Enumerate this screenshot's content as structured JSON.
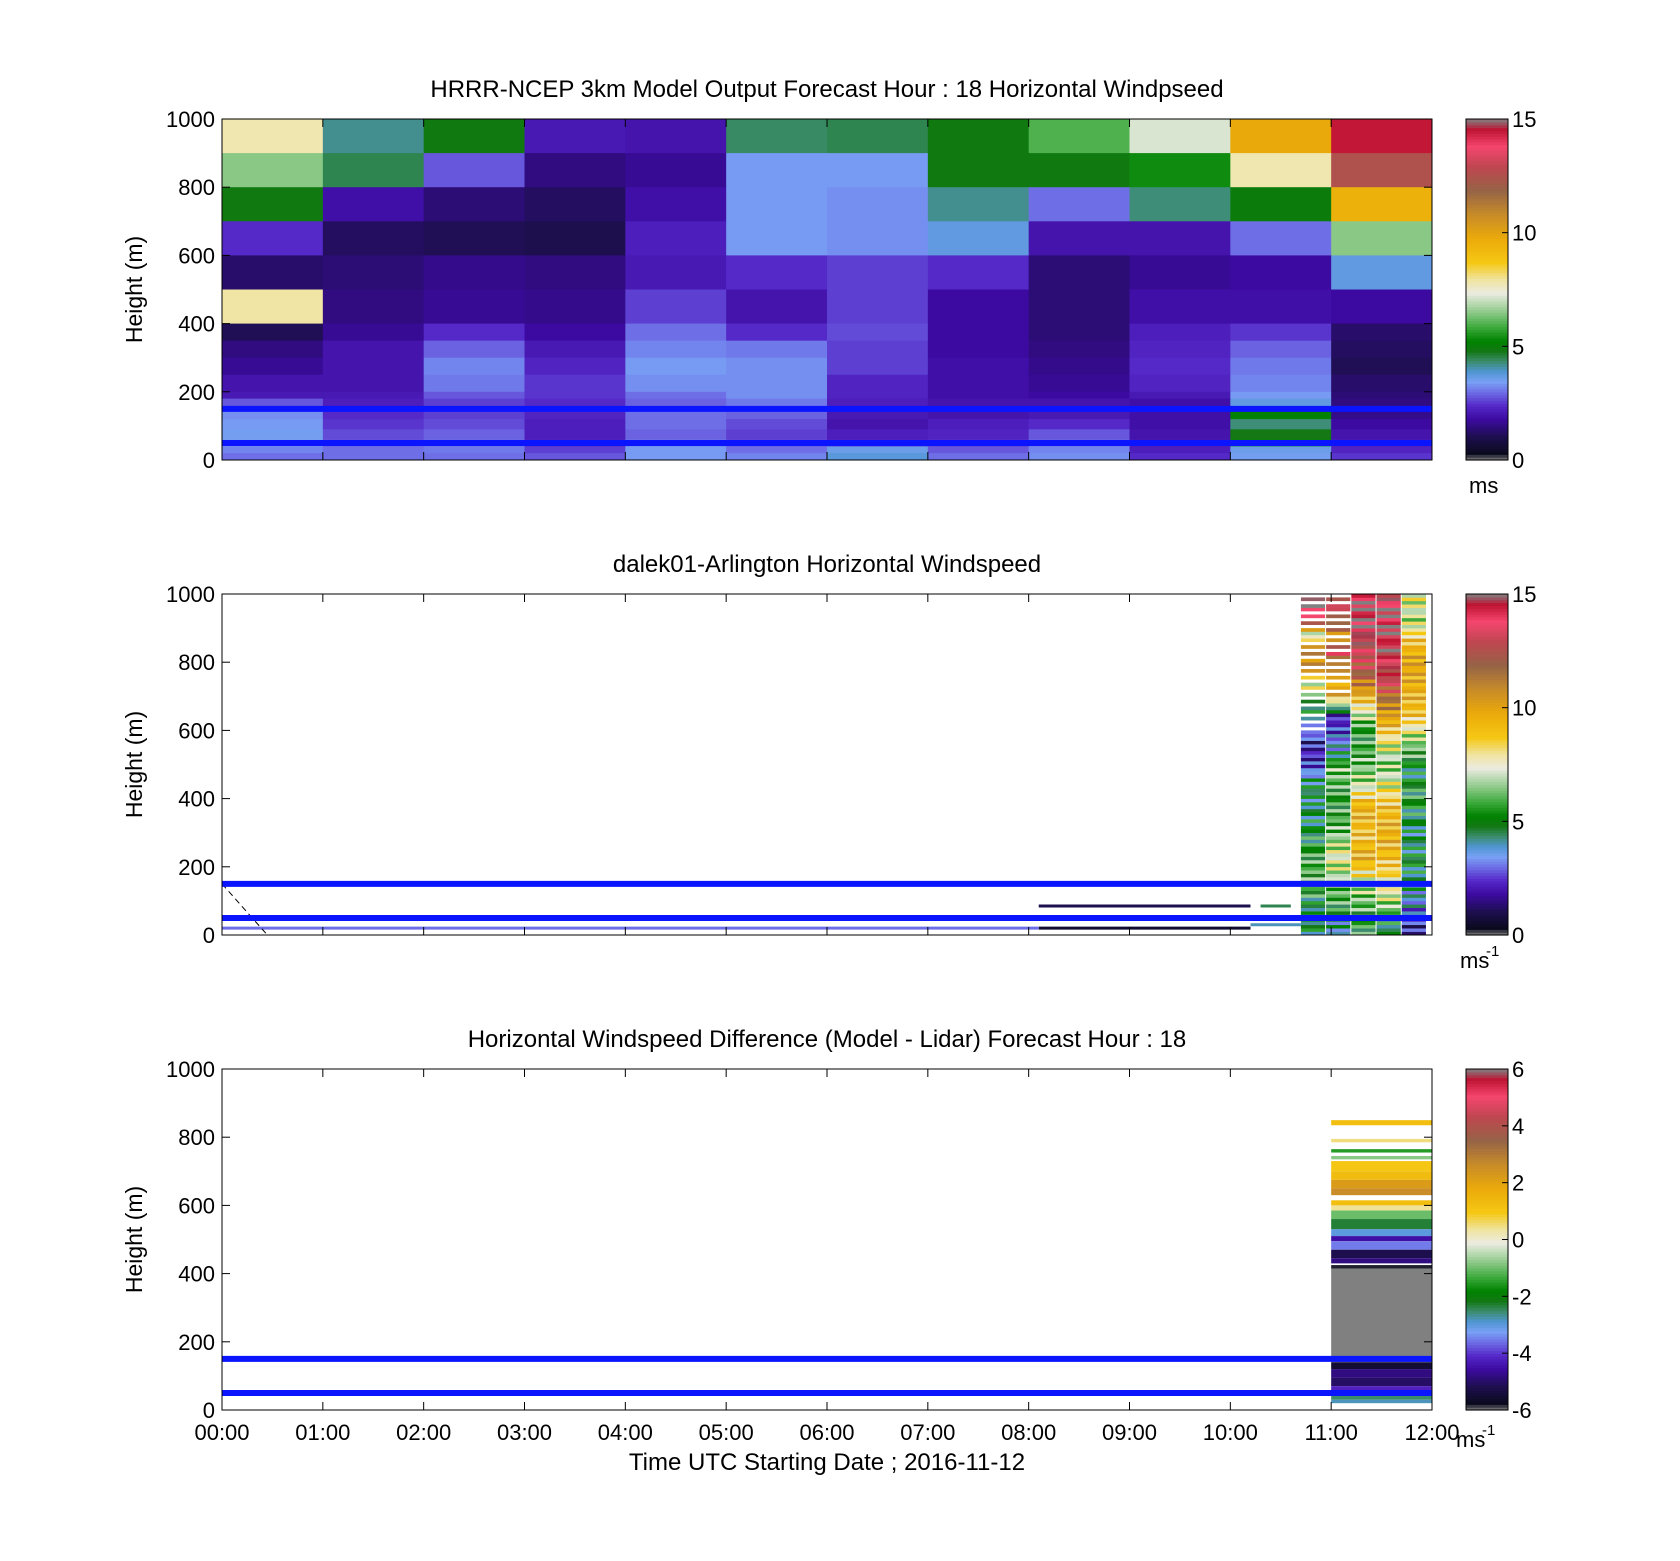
{
  "chart_data": [
    {
      "type": "heatmap",
      "title": "HRRR-NCEP 3km Model Output   Forecast Hour : 18 Horizontal Windpseed",
      "ylabel": "Height (m)",
      "xlabel": "",
      "ylim": [
        0,
        1000
      ],
      "xlim_hours": [
        0,
        12
      ],
      "yticks": [
        "0",
        "200",
        "400",
        "600",
        "800",
        "1000"
      ],
      "xticks": [
        "",
        "",
        "",
        "",
        "",
        "",
        "",
        "",
        "",
        "",
        "",
        "",
        ""
      ],
      "colorbar": {
        "min": 0,
        "max": 15,
        "ticks": [
          "0",
          "5",
          "10",
          "15"
        ],
        "unit": "ms",
        "unit_sup": ""
      },
      "reference_lines_m": [
        150,
        50
      ],
      "row_tops_m": [
        1000,
        900,
        800,
        700,
        600,
        500,
        400,
        350,
        300,
        250,
        200,
        180,
        150,
        120,
        90,
        60,
        40,
        20
      ],
      "col_hours": [
        0,
        1,
        2,
        3,
        4,
        5,
        6,
        7,
        8,
        9,
        10,
        11,
        12
      ],
      "grid": [
        [
          7.8,
          4.2,
          4.9,
          2.1,
          2.0,
          4.4,
          4.5,
          4.9,
          6.0,
          7.2,
          9.8,
          14.5
        ],
        [
          6.5,
          4.5,
          2.8,
          1.5,
          1.7,
          3.4,
          3.4,
          4.9,
          4.9,
          5.4,
          7.8,
          12.5
        ],
        [
          4.9,
          1.9,
          1.4,
          1.2,
          1.9,
          3.4,
          3.3,
          4.2,
          3.0,
          4.3,
          5.0,
          9.5
        ],
        [
          2.4,
          1.2,
          1.1,
          1.0,
          2.2,
          3.4,
          3.3,
          3.7,
          2.0,
          2.0,
          3.0,
          6.5
        ],
        [
          1.3,
          1.4,
          1.6,
          1.5,
          2.1,
          2.4,
          2.6,
          2.4,
          1.4,
          1.7,
          1.8,
          3.7
        ],
        [
          7.9,
          1.5,
          1.7,
          1.6,
          2.6,
          2.0,
          2.6,
          1.8,
          1.4,
          1.9,
          1.9,
          1.8
        ],
        [
          1.1,
          1.7,
          2.4,
          1.8,
          3.0,
          2.4,
          2.7,
          1.8,
          1.4,
          2.2,
          2.5,
          1.3
        ],
        [
          1.5,
          2.0,
          2.9,
          2.1,
          3.2,
          3.1,
          2.6,
          1.8,
          1.5,
          2.3,
          2.9,
          1.2
        ],
        [
          1.7,
          2.0,
          3.2,
          2.3,
          3.4,
          3.3,
          2.6,
          1.9,
          1.6,
          2.4,
          3.1,
          1.1
        ],
        [
          2.0,
          2.0,
          3.1,
          2.5,
          3.3,
          3.3,
          2.3,
          1.9,
          1.7,
          2.3,
          3.2,
          1.3
        ],
        [
          2.1,
          2.1,
          2.8,
          2.5,
          3.0,
          3.3,
          2.3,
          1.9,
          1.8,
          2.1,
          3.4,
          1.4
        ],
        [
          2.8,
          2.2,
          2.6,
          2.4,
          2.9,
          3.1,
          2.2,
          2.0,
          2.0,
          1.9,
          3.7,
          1.5
        ],
        [
          3.3,
          2.4,
          2.6,
          2.3,
          3.0,
          2.9,
          2.1,
          2.0,
          2.1,
          1.9,
          5.2,
          1.6
        ],
        [
          3.4,
          2.5,
          2.7,
          2.2,
          3.0,
          2.7,
          2.0,
          2.2,
          2.4,
          1.9,
          4.3,
          1.8
        ],
        [
          3.5,
          2.7,
          2.9,
          2.2,
          2.9,
          2.6,
          2.2,
          2.3,
          2.8,
          2.0,
          4.8,
          2.0
        ],
        [
          3.4,
          2.8,
          3.0,
          2.3,
          3.1,
          2.7,
          2.4,
          2.5,
          3.0,
          2.1,
          5.3,
          2.2
        ],
        [
          3.2,
          3.0,
          3.1,
          2.6,
          3.4,
          3.0,
          3.6,
          2.8,
          3.2,
          2.2,
          3.6,
          2.3
        ],
        [
          3.0,
          3.0,
          3.0,
          2.8,
          3.4,
          3.2,
          3.8,
          3.0,
          3.3,
          2.4,
          3.5,
          2.5
        ]
      ]
    },
    {
      "type": "heatmap",
      "title": "dalek01-Arlington  Horizontal Windspeed",
      "ylabel": "Height (m)",
      "xlabel": "",
      "ylim": [
        0,
        1000
      ],
      "xlim_hours": [
        0,
        12
      ],
      "yticks": [
        "0",
        "200",
        "400",
        "600",
        "800",
        "1000"
      ],
      "xticks": [
        "",
        "",
        "",
        "",
        "",
        "",
        "",
        "",
        "",
        "",
        "",
        "",
        ""
      ],
      "colorbar": {
        "min": 0,
        "max": 15,
        "ticks": [
          "0",
          "5",
          "10",
          "15"
        ],
        "unit": "ms",
        "unit_sup": "-1"
      },
      "reference_lines_m": [
        150,
        50
      ],
      "lidar_columns": [
        {
          "t0": 10.7,
          "t1": 10.95,
          "profile": [
            [
              20,
              5.0
            ],
            [
              60,
              4.2
            ],
            [
              120,
              5.5
            ],
            [
              200,
              6.0
            ],
            [
              300,
              5.0
            ],
            [
              380,
              4.5
            ],
            [
              440,
              4.8
            ],
            [
              500,
              2.5
            ],
            [
              560,
              2.0
            ],
            [
              620,
              4.5
            ],
            [
              700,
              6.0
            ],
            [
              760,
              9.0
            ],
            [
              820,
              11.0
            ],
            [
              880,
              7.0
            ],
            [
              940,
              15.0
            ],
            [
              990,
              15.0
            ]
          ],
          "gaps_above": 600
        },
        {
          "t0": 10.95,
          "t1": 11.2,
          "profile": [
            [
              20,
              4.0
            ],
            [
              80,
              5.5
            ],
            [
              150,
              6.5
            ],
            [
              230,
              7.5
            ],
            [
              320,
              6.0
            ],
            [
              400,
              5.5
            ],
            [
              480,
              6.5
            ],
            [
              560,
              3.5
            ],
            [
              640,
              2.0
            ],
            [
              700,
              9.5
            ],
            [
              760,
              9.0
            ],
            [
              820,
              13.0
            ],
            [
              880,
              11.0
            ],
            [
              940,
              13.5
            ]
          ],
          "gaps_above": 700
        },
        {
          "t0": 11.2,
          "t1": 11.45,
          "profile": [
            [
              20,
              5.5
            ],
            [
              80,
              6.0
            ],
            [
              150,
              7.0
            ],
            [
              220,
              9.5
            ],
            [
              300,
              9.0
            ],
            [
              380,
              9.5
            ],
            [
              440,
              7.0
            ],
            [
              520,
              6.0
            ],
            [
              600,
              5.5
            ],
            [
              660,
              7.5
            ],
            [
              720,
              10.5
            ],
            [
              780,
              12.5
            ],
            [
              850,
              13.5
            ],
            [
              900,
              15.0
            ],
            [
              980,
              14.5
            ]
          ],
          "gaps_above": 2000
        },
        {
          "t0": 11.45,
          "t1": 11.7,
          "profile": [
            [
              20,
              4.5
            ],
            [
              80,
              6.5
            ],
            [
              150,
              8.0
            ],
            [
              220,
              9.0
            ],
            [
              300,
              9.5
            ],
            [
              380,
              9.0
            ],
            [
              440,
              7.5
            ],
            [
              500,
              6.5
            ],
            [
              560,
              7.5
            ],
            [
              620,
              9.5
            ],
            [
              680,
              11.0
            ],
            [
              760,
              13.5
            ],
            [
              840,
              14.0
            ],
            [
              920,
              14.5
            ],
            [
              990,
              14.0
            ]
          ],
          "gaps_above": 2000
        },
        {
          "t0": 11.7,
          "t1": 11.95,
          "profile": [
            [
              20,
              2.0
            ],
            [
              60,
              3.0
            ],
            [
              120,
              4.0
            ],
            [
              200,
              5.0
            ],
            [
              300,
              4.5
            ],
            [
              400,
              5.5
            ],
            [
              480,
              4.8
            ],
            [
              540,
              6.0
            ],
            [
              600,
              7.5
            ],
            [
              650,
              9.0
            ],
            [
              720,
              9.5
            ],
            [
              800,
              10.0
            ],
            [
              860,
              9.0
            ],
            [
              920,
              7.0
            ],
            [
              990,
              7.5
            ]
          ],
          "gaps_above": 2000
        }
      ],
      "lidar_lines": [
        {
          "t0": 8.1,
          "t1": 10.2,
          "h": 85,
          "v": 1.0
        },
        {
          "t0": 8.1,
          "t1": 10.2,
          "h": 20,
          "v": 0.6
        },
        {
          "t0": 10.3,
          "t1": 10.6,
          "h": 85,
          "v": 4.5
        },
        {
          "t0": 10.2,
          "t1": 10.7,
          "h": 30,
          "v": 4.0
        },
        {
          "t0": 0.0,
          "t1": 8.1,
          "h": 20,
          "v": 3.0
        }
      ]
    },
    {
      "type": "heatmap",
      "title": "Horizontal Windspeed Difference (Model - Lidar) Forecast Hour : 18",
      "ylabel": "Height (m)",
      "xlabel": "Time UTC  Starting Date ; 2016-11-12",
      "ylim": [
        0,
        1000
      ],
      "xlim_hours": [
        0,
        12
      ],
      "yticks": [
        "0",
        "200",
        "400",
        "600",
        "800",
        "1000"
      ],
      "xticks": [
        "00:00",
        "01:00",
        "02:00",
        "03:00",
        "04:00",
        "05:00",
        "06:00",
        "07:00",
        "08:00",
        "09:00",
        "10:00",
        "11:00",
        "12:00"
      ],
      "colorbar": {
        "min": -6,
        "max": 6,
        "ticks": [
          "-6",
          "-4",
          "-2",
          "0",
          "2",
          "4",
          "6"
        ],
        "unit": "ms",
        "unit_sup": "-1"
      },
      "reference_lines_m": [
        150,
        50
      ],
      "diff_column": {
        "t0": 11,
        "t1": 12,
        "bands": [
          [
            835,
            850,
            1.2
          ],
          [
            785,
            795,
            0.5
          ],
          [
            755,
            765,
            -1.5
          ],
          [
            735,
            745,
            -0.8
          ],
          [
            700,
            730,
            1.0
          ],
          [
            675,
            700,
            1.3
          ],
          [
            650,
            675,
            2.2
          ],
          [
            630,
            650,
            2.6
          ],
          [
            600,
            615,
            1.2
          ],
          [
            585,
            600,
            0.4
          ],
          [
            560,
            585,
            -1.0
          ],
          [
            530,
            560,
            -2.3
          ],
          [
            510,
            530,
            -3.0
          ],
          [
            495,
            510,
            -4.5
          ],
          [
            470,
            495,
            -3.5
          ],
          [
            445,
            470,
            -5.2
          ],
          [
            430,
            445,
            -4.8
          ],
          [
            415,
            425,
            -5.8
          ],
          [
            140,
            415,
            6.2
          ],
          [
            120,
            140,
            -5.5
          ],
          [
            95,
            120,
            -4.8
          ],
          [
            70,
            95,
            -5.0
          ],
          [
            50,
            70,
            -4.2
          ],
          [
            30,
            50,
            -2.5
          ],
          [
            20,
            30,
            -2.8
          ]
        ]
      }
    }
  ]
}
